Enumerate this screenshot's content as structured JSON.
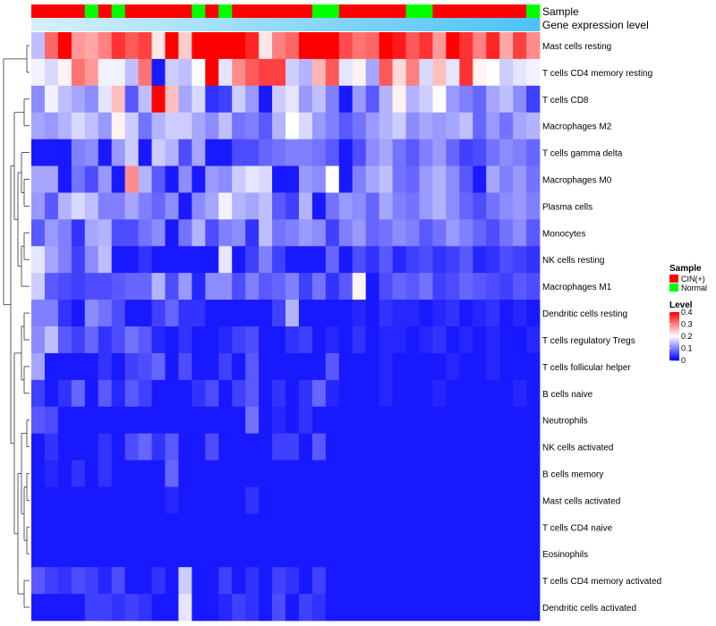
{
  "chart_data": {
    "type": "heatmap",
    "title": "",
    "annotation_tracks": [
      "Sample",
      "Gene expression level"
    ],
    "sample_groups": [
      "CIN(+)",
      "CIN(+)",
      "CIN(+)",
      "CIN(+)",
      "Normal",
      "CIN(+)",
      "Normal",
      "CIN(+)",
      "CIN(+)",
      "CIN(+)",
      "CIN(+)",
      "CIN(+)",
      "Normal",
      "CIN(+)",
      "Normal",
      "CIN(+)",
      "CIN(+)",
      "CIN(+)",
      "CIN(+)",
      "CIN(+)",
      "CIN(+)",
      "Normal",
      "Normal",
      "CIN(+)",
      "CIN(+)",
      "CIN(+)",
      "CIN(+)",
      "CIN(+)",
      "Normal",
      "Normal",
      "CIN(+)",
      "CIN(+)",
      "CIN(+)",
      "CIN(+)",
      "CIN(+)",
      "CIN(+)",
      "CIN(+)",
      "Normal"
    ],
    "expression_levels": [
      0.08,
      0.1,
      0.12,
      0.15,
      0.18,
      0.2,
      0.22,
      0.25,
      0.28,
      0.3,
      0.32,
      0.35,
      0.38,
      0.4,
      0.42,
      0.45,
      0.48,
      0.5,
      0.52,
      0.55,
      0.58,
      0.6,
      0.62,
      0.65,
      0.68,
      0.7,
      0.72,
      0.75,
      0.78,
      0.8,
      0.82,
      0.85,
      0.88,
      0.9,
      0.92,
      0.95,
      0.98,
      1.0
    ],
    "rows": [
      {
        "label": "Mast cells resting",
        "values": [
          0.15,
          0.32,
          0.4,
          0.28,
          0.27,
          0.3,
          0.36,
          0.33,
          0.35,
          0.22,
          0.4,
          0.24,
          0.4,
          0.4,
          0.4,
          0.4,
          0.37,
          0.22,
          0.3,
          0.32,
          0.4,
          0.4,
          0.4,
          0.34,
          0.31,
          0.32,
          0.4,
          0.38,
          0.33,
          0.36,
          0.28,
          0.4,
          0.36,
          0.3,
          0.37,
          0.27,
          0.35,
          0.29
        ]
      },
      {
        "label": "T cells CD4 memory resting",
        "values": [
          0.19,
          0.17,
          0.21,
          0.31,
          0.28,
          0.19,
          0.19,
          0.15,
          0.31,
          0.02,
          0.16,
          0.15,
          0.2,
          0.4,
          0.18,
          0.29,
          0.33,
          0.35,
          0.35,
          0.16,
          0.14,
          0.26,
          0.33,
          0.18,
          0.21,
          0.13,
          0.33,
          0.23,
          0.3,
          0.17,
          0.25,
          0.18,
          0.36,
          0.21,
          0.2,
          0.16,
          0.18,
          0.19
        ]
      },
      {
        "label": "T cells CD8",
        "values": [
          0.11,
          0.19,
          0.15,
          0.13,
          0.11,
          0.18,
          0.25,
          0.07,
          0.15,
          0.4,
          0.25,
          0.13,
          0.17,
          0.04,
          0.05,
          0.16,
          0.12,
          0.02,
          0.16,
          0.18,
          0.12,
          0.15,
          0.1,
          0.02,
          0.12,
          0.07,
          0.14,
          0.21,
          0.14,
          0.16,
          0.2,
          0.12,
          0.1,
          0.08,
          0.13,
          0.15,
          0.11,
          0.05
        ]
      },
      {
        "label": "Macrophages M2",
        "values": [
          0.13,
          0.12,
          0.14,
          0.17,
          0.15,
          0.12,
          0.21,
          0.16,
          0.09,
          0.14,
          0.16,
          0.16,
          0.13,
          0.11,
          0.15,
          0.09,
          0.1,
          0.07,
          0.14,
          0.2,
          0.17,
          0.12,
          0.1,
          0.07,
          0.09,
          0.12,
          0.14,
          0.16,
          0.11,
          0.13,
          0.12,
          0.13,
          0.15,
          0.08,
          0.12,
          0.09,
          0.13,
          0.14
        ]
      },
      {
        "label": "T cells gamma delta",
        "values": [
          0.02,
          0.02,
          0.02,
          0.1,
          0.11,
          0.02,
          0.12,
          0.16,
          0.02,
          0.16,
          0.14,
          0.06,
          0.13,
          0.02,
          0.02,
          0.06,
          0.06,
          0.08,
          0.09,
          0.1,
          0.1,
          0.09,
          0.07,
          0.02,
          0.06,
          0.11,
          0.13,
          0.09,
          0.07,
          0.1,
          0.12,
          0.08,
          0.05,
          0.06,
          0.09,
          0.11,
          0.1,
          0.08
        ]
      },
      {
        "label": "Macrophages M0",
        "values": [
          0.13,
          0.13,
          0.02,
          0.09,
          0.06,
          0.12,
          0.02,
          0.29,
          0.14,
          0.07,
          0.02,
          0.11,
          0.02,
          0.12,
          0.11,
          0.16,
          0.18,
          0.17,
          0.02,
          0.02,
          0.12,
          0.11,
          0.2,
          0.02,
          0.1,
          0.13,
          0.15,
          0.09,
          0.08,
          0.12,
          0.14,
          0.11,
          0.07,
          0.02,
          0.13,
          0.1,
          0.12,
          0.09
        ]
      },
      {
        "label": "Plasma cells",
        "values": [
          0.12,
          0.07,
          0.14,
          0.17,
          0.15,
          0.1,
          0.1,
          0.13,
          0.1,
          0.08,
          0.11,
          0.02,
          0.11,
          0.13,
          0.19,
          0.14,
          0.13,
          0.15,
          0.07,
          0.05,
          0.14,
          0.02,
          0.09,
          0.12,
          0.11,
          0.08,
          0.13,
          0.1,
          0.09,
          0.12,
          0.14,
          0.11,
          0.08,
          0.06,
          0.09,
          0.11,
          0.12,
          0.1
        ]
      },
      {
        "label": "Monocytes",
        "values": [
          0.07,
          0.12,
          0.1,
          0.04,
          0.13,
          0.14,
          0.06,
          0.06,
          0.09,
          0.11,
          0.02,
          0.09,
          0.14,
          0.06,
          0.1,
          0.11,
          0.04,
          0.15,
          0.09,
          0.1,
          0.12,
          0.11,
          0.05,
          0.1,
          0.12,
          0.08,
          0.09,
          0.11,
          0.1,
          0.07,
          0.09,
          0.12,
          0.1,
          0.08,
          0.06,
          0.09,
          0.11,
          0.07
        ]
      },
      {
        "label": "NK cells resting",
        "values": [
          0.18,
          0.13,
          0.1,
          0.05,
          0.11,
          0.15,
          0.02,
          0.02,
          0.04,
          0.02,
          0.02,
          0.02,
          0.02,
          0.02,
          0.18,
          0.02,
          0.05,
          0.1,
          0.05,
          0.02,
          0.02,
          0.02,
          0.08,
          0.02,
          0.06,
          0.04,
          0.07,
          0.03,
          0.05,
          0.06,
          0.04,
          0.05,
          0.07,
          0.03,
          0.04,
          0.06,
          0.05,
          0.04
        ]
      },
      {
        "label": "Macrophages M1",
        "values": [
          0.16,
          0.07,
          0.06,
          0.05,
          0.06,
          0.06,
          0.07,
          0.08,
          0.08,
          0.14,
          0.06,
          0.12,
          0.03,
          0.11,
          0.11,
          0.06,
          0.1,
          0.07,
          0.08,
          0.1,
          0.05,
          0.09,
          0.04,
          0.07,
          0.21,
          0.02,
          0.06,
          0.08,
          0.07,
          0.09,
          0.05,
          0.06,
          0.08,
          0.07,
          0.06,
          0.05,
          0.07,
          0.06
        ]
      },
      {
        "label": "Dendritic cells resting",
        "values": [
          0.1,
          0.1,
          0.04,
          0.02,
          0.11,
          0.09,
          0.06,
          0.02,
          0.02,
          0.05,
          0.08,
          0.04,
          0.04,
          0.02,
          0.02,
          0.02,
          0.02,
          0.02,
          0.05,
          0.14,
          0.02,
          0.02,
          0.02,
          0.02,
          0.03,
          0.02,
          0.04,
          0.03,
          0.03,
          0.02,
          0.03,
          0.04,
          0.02,
          0.03,
          0.04,
          0.02,
          0.03,
          0.02
        ]
      },
      {
        "label": "T cells regulatory  Tregs",
        "values": [
          0.11,
          0.15,
          0.07,
          0.05,
          0.08,
          0.04,
          0.06,
          0.09,
          0.07,
          0.03,
          0.02,
          0.04,
          0.02,
          0.02,
          0.03,
          0.05,
          0.06,
          0.02,
          0.02,
          0.04,
          0.05,
          0.02,
          0.03,
          0.02,
          0.04,
          0.02,
          0.03,
          0.03,
          0.02,
          0.03,
          0.04,
          0.02,
          0.03,
          0.02,
          0.03,
          0.02,
          0.02,
          0.03
        ]
      },
      {
        "label": "T cells follicular helper",
        "values": [
          0.13,
          0.02,
          0.02,
          0.02,
          0.02,
          0.04,
          0.02,
          0.05,
          0.06,
          0.08,
          0.02,
          0.06,
          0.02,
          0.02,
          0.05,
          0.02,
          0.07,
          0.02,
          0.02,
          0.02,
          0.02,
          0.02,
          0.07,
          0.02,
          0.02,
          0.02,
          0.03,
          0.02,
          0.02,
          0.02,
          0.02,
          0.03,
          0.02,
          0.02,
          0.03,
          0.02,
          0.02,
          0.02
        ]
      },
      {
        "label": "B cells naive",
        "values": [
          0.05,
          0.02,
          0.04,
          0.08,
          0.02,
          0.07,
          0.03,
          0.07,
          0.05,
          0.02,
          0.02,
          0.02,
          0.04,
          0.06,
          0.02,
          0.05,
          0.07,
          0.02,
          0.04,
          0.02,
          0.04,
          0.08,
          0.03,
          0.02,
          0.02,
          0.02,
          0.03,
          0.02,
          0.02,
          0.02,
          0.03,
          0.02,
          0.02,
          0.02,
          0.02,
          0.02,
          0.03,
          0.02
        ]
      },
      {
        "label": "Neutrophils",
        "values": [
          0.07,
          0.06,
          0.02,
          0.02,
          0.02,
          0.02,
          0.02,
          0.02,
          0.02,
          0.02,
          0.02,
          0.02,
          0.02,
          0.02,
          0.02,
          0.02,
          0.09,
          0.02,
          0.03,
          0.02,
          0.04,
          0.02,
          0.02,
          0.02,
          0.02,
          0.02,
          0.02,
          0.02,
          0.02,
          0.02,
          0.02,
          0.02,
          0.02,
          0.02,
          0.02,
          0.02,
          0.02,
          0.02
        ]
      },
      {
        "label": "NK cells activated",
        "values": [
          0.02,
          0.04,
          0.02,
          0.02,
          0.02,
          0.04,
          0.02,
          0.06,
          0.08,
          0.04,
          0.07,
          0.02,
          0.02,
          0.06,
          0.02,
          0.02,
          0.02,
          0.02,
          0.05,
          0.05,
          0.02,
          0.07,
          0.02,
          0.02,
          0.02,
          0.02,
          0.02,
          0.02,
          0.02,
          0.02,
          0.02,
          0.02,
          0.02,
          0.02,
          0.02,
          0.02,
          0.02,
          0.02
        ]
      },
      {
        "label": "B cells memory",
        "values": [
          0.02,
          0.03,
          0.02,
          0.04,
          0.02,
          0.04,
          0.02,
          0.02,
          0.02,
          0.02,
          0.08,
          0.02,
          0.02,
          0.02,
          0.02,
          0.02,
          0.02,
          0.02,
          0.02,
          0.02,
          0.02,
          0.02,
          0.02,
          0.02,
          0.02,
          0.02,
          0.02,
          0.02,
          0.02,
          0.02,
          0.02,
          0.02,
          0.02,
          0.02,
          0.02,
          0.02,
          0.02,
          0.02
        ]
      },
      {
        "label": "Mast cells activated",
        "values": [
          0.02,
          0.02,
          0.02,
          0.02,
          0.02,
          0.02,
          0.02,
          0.02,
          0.02,
          0.02,
          0.03,
          0.02,
          0.02,
          0.02,
          0.02,
          0.02,
          0.04,
          0.02,
          0.02,
          0.02,
          0.02,
          0.02,
          0.02,
          0.02,
          0.02,
          0.02,
          0.02,
          0.02,
          0.02,
          0.02,
          0.02,
          0.02,
          0.02,
          0.02,
          0.02,
          0.02,
          0.02,
          0.02
        ]
      },
      {
        "label": "T cells CD4 naive",
        "values": [
          0.02,
          0.02,
          0.02,
          0.02,
          0.02,
          0.02,
          0.02,
          0.02,
          0.02,
          0.02,
          0.02,
          0.02,
          0.02,
          0.02,
          0.02,
          0.02,
          0.02,
          0.02,
          0.02,
          0.02,
          0.02,
          0.02,
          0.02,
          0.02,
          0.02,
          0.02,
          0.02,
          0.02,
          0.02,
          0.02,
          0.02,
          0.02,
          0.02,
          0.02,
          0.02,
          0.02,
          0.02,
          0.02
        ]
      },
      {
        "label": "Eosinophils",
        "values": [
          0.02,
          0.02,
          0.02,
          0.02,
          0.02,
          0.02,
          0.02,
          0.02,
          0.02,
          0.02,
          0.02,
          0.02,
          0.02,
          0.02,
          0.02,
          0.02,
          0.02,
          0.02,
          0.02,
          0.02,
          0.02,
          0.02,
          0.02,
          0.02,
          0.02,
          0.02,
          0.02,
          0.02,
          0.02,
          0.02,
          0.02,
          0.02,
          0.02,
          0.02,
          0.02,
          0.02,
          0.02,
          0.02
        ]
      },
      {
        "label": "T cells CD4 memory activated",
        "values": [
          0.07,
          0.05,
          0.04,
          0.06,
          0.05,
          0.03,
          0.06,
          0.02,
          0.02,
          0.04,
          0.02,
          0.16,
          0.02,
          0.02,
          0.05,
          0.02,
          0.04,
          0.02,
          0.05,
          0.04,
          0.02,
          0.05,
          0.02,
          0.02,
          0.02,
          0.02,
          0.02,
          0.02,
          0.02,
          0.02,
          0.02,
          0.02,
          0.02,
          0.02,
          0.02,
          0.02,
          0.02,
          0.02
        ]
      },
      {
        "label": "Dendritic cells activated",
        "values": [
          0.02,
          0.02,
          0.02,
          0.02,
          0.05,
          0.05,
          0.04,
          0.05,
          0.04,
          0.02,
          0.02,
          0.18,
          0.02,
          0.02,
          0.03,
          0.05,
          0.04,
          0.02,
          0.06,
          0.02,
          0.05,
          0.04,
          0.02,
          0.02,
          0.02,
          0.02,
          0.02,
          0.02,
          0.02,
          0.02,
          0.02,
          0.02,
          0.02,
          0.02,
          0.02,
          0.02,
          0.02,
          0.02
        ]
      }
    ],
    "color_scale": {
      "min": 0,
      "mid": 0.2,
      "max": 0.4,
      "low_color": "#0000ff",
      "mid_color": "#ffffff",
      "high_color": "#ff0000"
    },
    "legend": {
      "sample_title": "Sample",
      "sample_entries": [
        {
          "label": "CIN(+)",
          "color": "#ff0000"
        },
        {
          "label": "Normal",
          "color": "#00ff00"
        }
      ],
      "level_title": "Level",
      "level_ticks": [
        "0.4",
        "0.3",
        "0.2",
        "0.1",
        "0"
      ],
      "level_tick_values": [
        0.4,
        0.3,
        0.2,
        0.1,
        0
      ]
    },
    "expression_track_colors": {
      "low": "#dff3fb",
      "high": "#4fc3f7"
    },
    "dendrogram": "hierarchical clustering of rows"
  }
}
